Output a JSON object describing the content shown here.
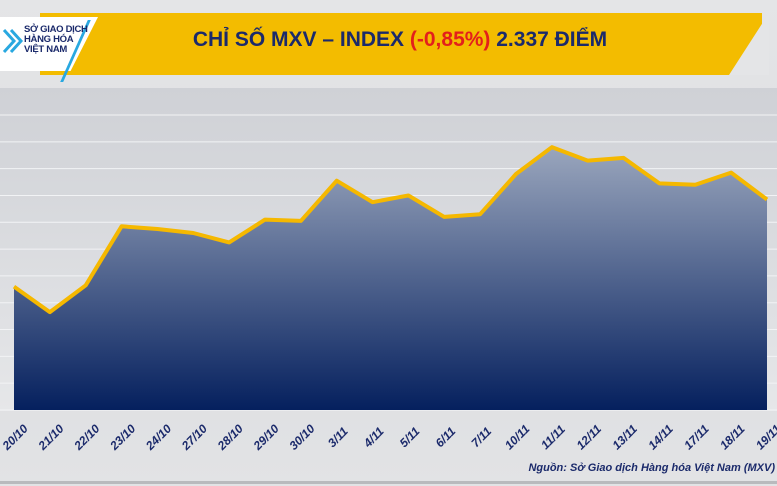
{
  "header": {
    "title_prefix": "CHỈ SỐ MXV – INDEX ",
    "title_change": "(-0,85%)",
    "title_suffix": " 2.337 ĐIỂM",
    "logo_text": [
      "SỞ GIAO DỊCH",
      "HÀNG HÓA",
      "VIỆT NAM"
    ]
  },
  "source": "Nguồn: Sở Giao dịch Hàng hóa Việt Nam (MXV)",
  "colors": {
    "line": "#f5b800",
    "fill_top": "#9aa6bd",
    "fill_bottom": "#05205e",
    "title": "#1b2a6b",
    "negative": "#e3201b",
    "banner": "#f3bc00"
  },
  "chart_data": {
    "type": "area",
    "title": "CHỈ SỐ MXV – INDEX (-0,85%) 2.337 ĐIỂM",
    "categories": [
      "20/10",
      "21/10",
      "22/10",
      "23/10",
      "24/10",
      "27/10",
      "28/10",
      "29/10",
      "30/10",
      "3/11",
      "4/11",
      "5/11",
      "6/11",
      "7/11",
      "10/11",
      "11/11",
      "12/11",
      "13/11",
      "14/11",
      "17/11",
      "18/11",
      "19/11"
    ],
    "values": [
      2272,
      2253,
      2273,
      2317,
      2315,
      2312,
      2305,
      2322,
      2321,
      2351,
      2335,
      2340,
      2324,
      2326,
      2356,
      2376,
      2366,
      2368,
      2349,
      2348,
      2357,
      2337
    ],
    "ylim": [
      2180,
      2400
    ],
    "grid": true,
    "xlabel": "",
    "ylabel": ""
  }
}
